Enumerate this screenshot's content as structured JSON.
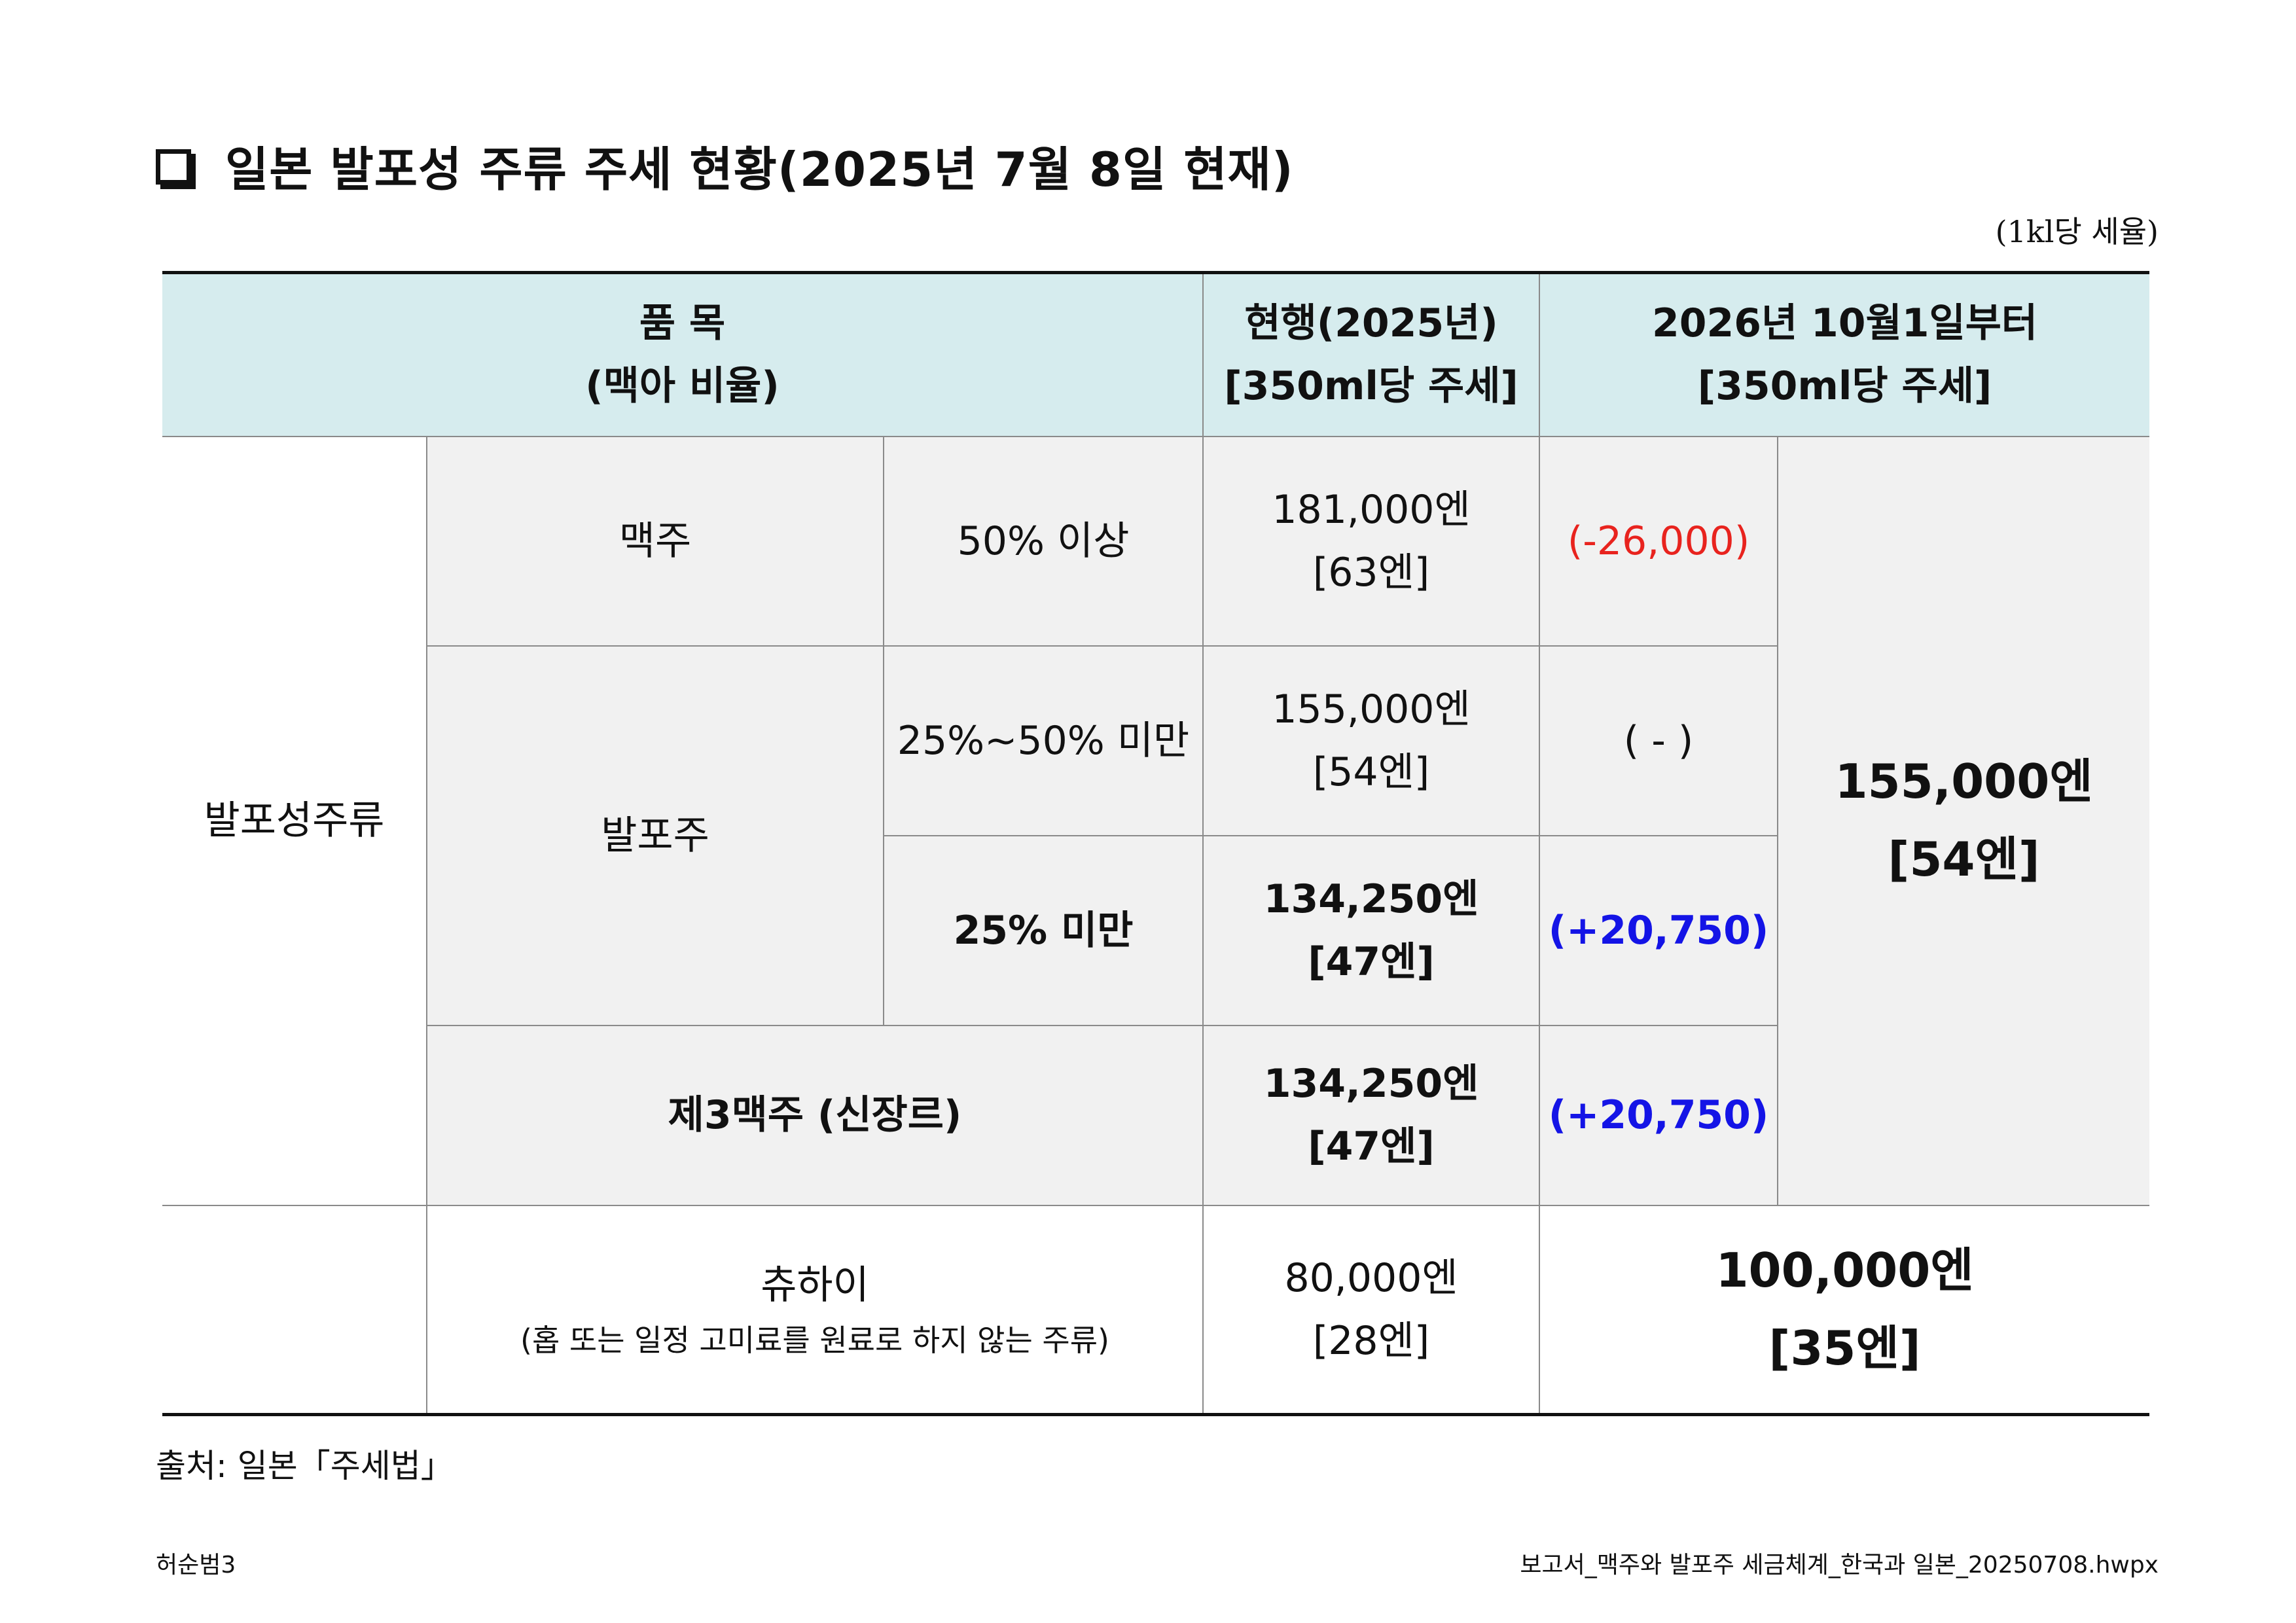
{
  "title": "일본 발포성 주류 주세 현황(2025년 7월 8일 현재)",
  "unit_note": "(1kl당 세율)",
  "table": {
    "header": {
      "item_line1": "품 목",
      "item_line2": "(맥아 비율)",
      "current_line1": "현행(2025년)",
      "current_line2": "[350ml당 주세]",
      "future_line1": "2026년 10월1일부터",
      "future_line2": "[350ml당 주세]"
    },
    "category": "발포성주류",
    "rows": [
      {
        "type": "맥주",
        "ratio": "50% 이상",
        "current_rate": "181,000엔",
        "current_per350": "[63엔]",
        "change": "(-26,000)"
      },
      {
        "type": "발포주",
        "ratio": "25%~50% 미만",
        "current_rate": "155,000엔",
        "current_per350": "[54엔]",
        "change": "( - )"
      },
      {
        "ratio": "25% 미만",
        "current_rate": "134,250엔",
        "current_per350": "[47엔]",
        "change": "(+20,750)"
      },
      {
        "type": "제3맥주 (신장르)",
        "current_rate": "134,250엔",
        "current_per350": "[47엔]",
        "change": "(+20,750)"
      }
    ],
    "unified": {
      "rate": "155,000엔",
      "per350": "[54엔]"
    },
    "chuhai": {
      "name": "츄하이",
      "note": "(홉 또는 일정 고미료를 원료로 하지 않는 주류)",
      "current_rate": "80,000엔",
      "current_per350": "[28엔]",
      "future_rate": "100,000엔",
      "future_per350": "[35엔]"
    }
  },
  "source": "출처: 일본「주세법」",
  "footer": {
    "author": "허순범3",
    "filename": "보고서_맥주와 발포주 세금체계_한국과 일본_20250708.hwpx"
  },
  "colors": {
    "header_bg": "#d6ecee",
    "cell_bg": "#f1f1f1",
    "negative": "#e8231e",
    "positive": "#1414e6"
  }
}
